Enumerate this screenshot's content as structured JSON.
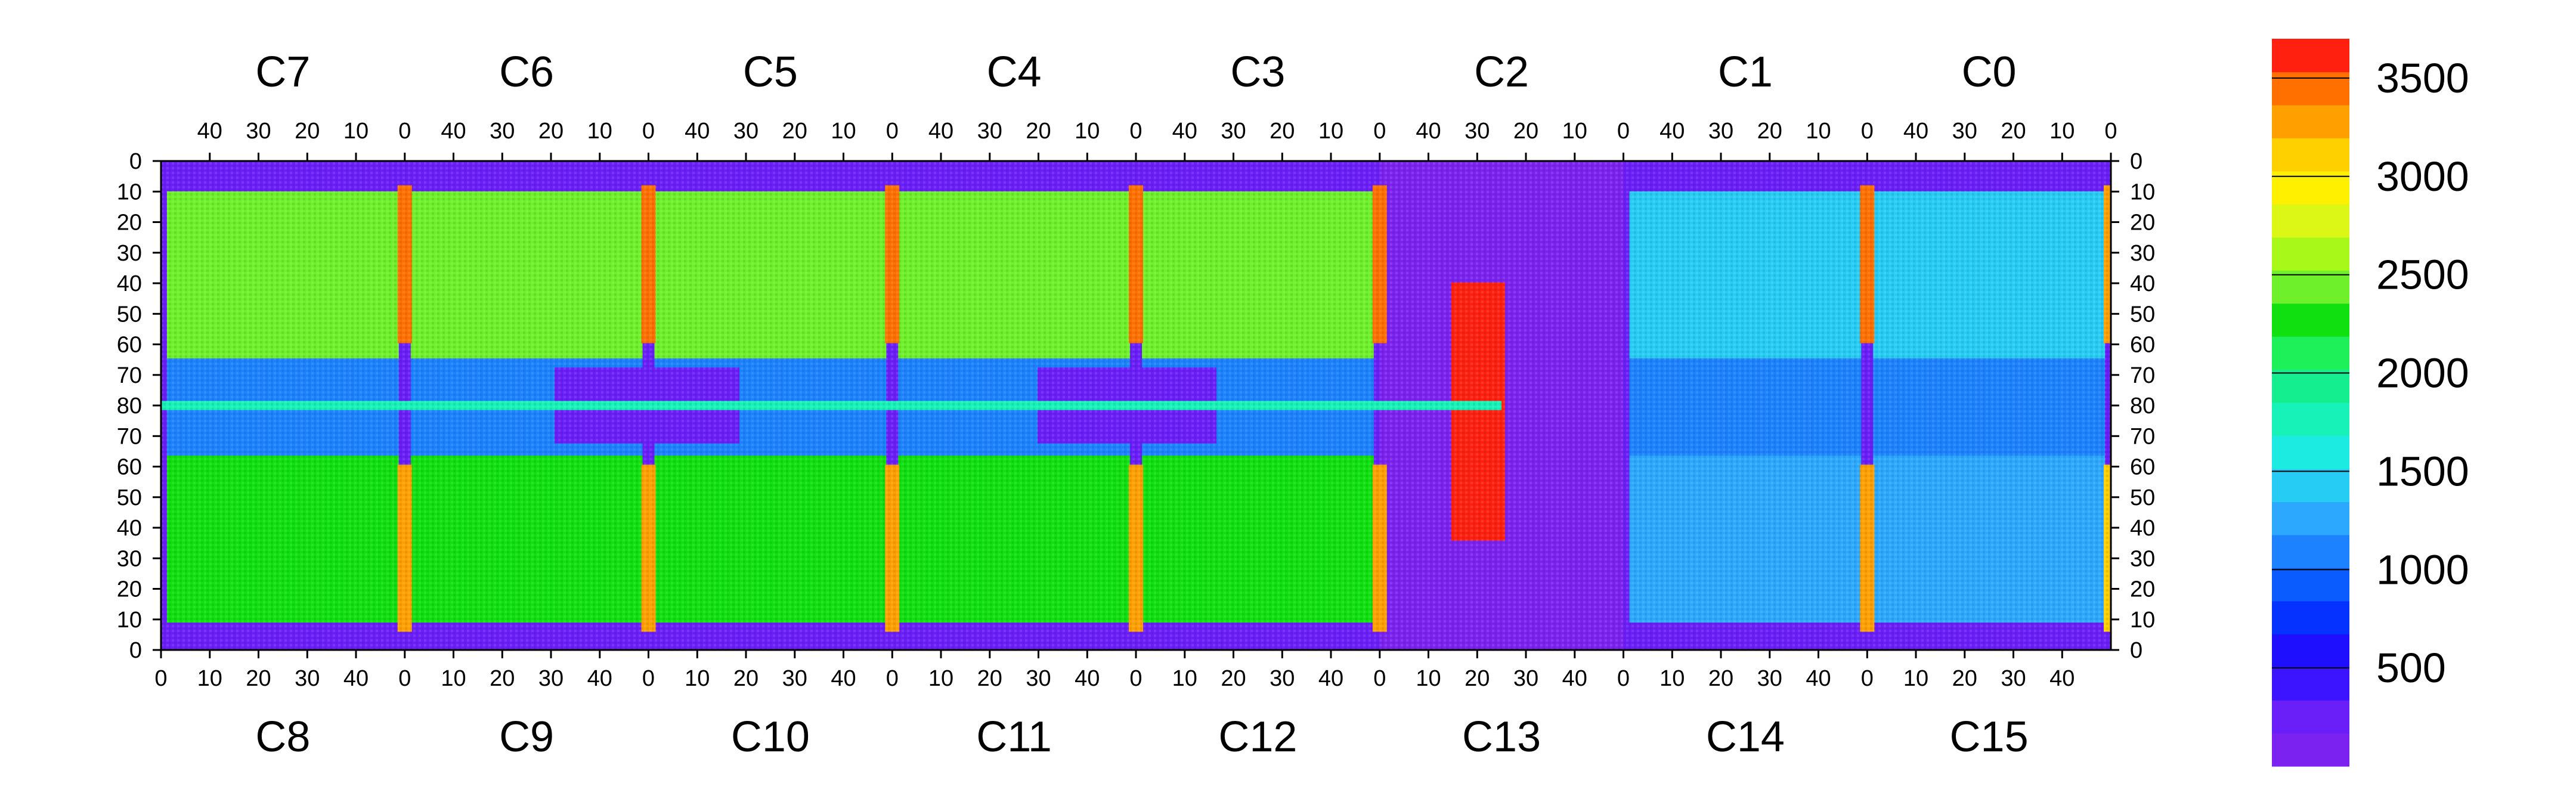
{
  "chart_data": {
    "type": "heatmap",
    "title": "",
    "xlabel": "",
    "ylabel": "",
    "chips_top": [
      "C7",
      "C6",
      "C5",
      "C4",
      "C3",
      "C2",
      "C1",
      "C0"
    ],
    "chips_bottom": [
      "C8",
      "C9",
      "C10",
      "C11",
      "C12",
      "C13",
      "C14",
      "C15"
    ],
    "top_col_ticks": [
      "40",
      "30",
      "20",
      "10",
      "0"
    ],
    "bottom_col_ticks": [
      "0",
      "10",
      "20",
      "30",
      "40"
    ],
    "row_ticks_top_half": [
      "0",
      "10",
      "20",
      "30",
      "40",
      "50",
      "60",
      "70",
      "80"
    ],
    "row_ticks_bottom_half": [
      "70",
      "60",
      "50",
      "40",
      "30",
      "20",
      "10",
      "0"
    ],
    "colorbar": {
      "range": [
        0,
        3700
      ],
      "ticks": [
        "500",
        "1000",
        "1500",
        "2000",
        "2500",
        "3000",
        "3500"
      ],
      "tick_values": [
        500,
        1000,
        1500,
        2000,
        2500,
        3000,
        3500
      ],
      "levels": 20,
      "palette": [
        "#7B22F0",
        "#6A1EF8",
        "#3C14FF",
        "#1E0FFF",
        "#0532FF",
        "#0A5CFF",
        "#1C82FF",
        "#2CA8FF",
        "#26CCF4",
        "#1CEBE2",
        "#17F2B8",
        "#15EE8E",
        "#1EF05A",
        "#10E010",
        "#6EF02A",
        "#A8F81A",
        "#DCF616",
        "#FFF000",
        "#FFD000",
        "#FFA000",
        "#FF7000",
        "#FF2010"
      ]
    },
    "regions": {
      "hot_columns": [
        {
          "chip_index": 0,
          "value": 3400
        },
        {
          "chip_index": 1,
          "value": 3500
        },
        {
          "chip_index": 2,
          "value": 3500
        },
        {
          "chip_index": 3,
          "value": 3500
        },
        {
          "chip_index": 4,
          "value": 3450
        },
        {
          "chip_index": 6,
          "value": 3500
        },
        {
          "chip_index": 7,
          "value": 3300
        }
      ],
      "center_row_value": 1800,
      "upper_band_value": 2400,
      "lower_band_value": 2300,
      "middle_band_value": 1100,
      "background_value": 300,
      "dead_region_value": 100,
      "dead_region_columns": "C2/C13 right half to C1/C14 left edge"
    }
  }
}
